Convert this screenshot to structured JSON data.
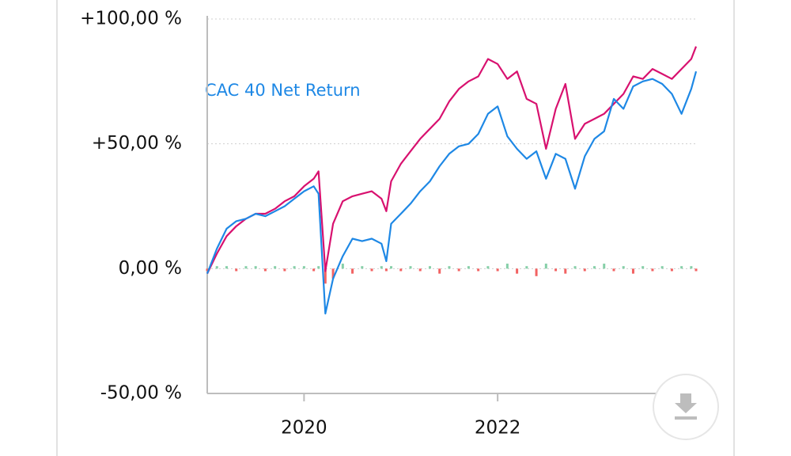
{
  "chart_data": {
    "type": "line",
    "annotation": "CAC 40 Net Return",
    "xlim": [
      2019.0,
      2024.05
    ],
    "xticks": [
      2020,
      2022
    ],
    "ylim": [
      -50,
      100
    ],
    "yticks": [
      {
        "value": -50,
        "label": "-50,00 %"
      },
      {
        "value": 0,
        "label": "0,00 %"
      },
      {
        "value": 50,
        "label": "+50,00 %"
      },
      {
        "value": 100,
        "label": "+100,00 %"
      }
    ],
    "grid": true,
    "x": [
      2019.0,
      2019.1,
      2019.2,
      2019.3,
      2019.4,
      2019.5,
      2019.6,
      2019.7,
      2019.8,
      2019.9,
      2020.0,
      2020.1,
      2020.15,
      2020.22,
      2020.3,
      2020.4,
      2020.5,
      2020.6,
      2020.7,
      2020.8,
      2020.85,
      2020.9,
      2021.0,
      2021.1,
      2021.2,
      2021.3,
      2021.4,
      2021.5,
      2021.6,
      2021.7,
      2021.8,
      2021.9,
      2022.0,
      2022.1,
      2022.2,
      2022.3,
      2022.4,
      2022.5,
      2022.6,
      2022.7,
      2022.8,
      2022.9,
      2023.0,
      2023.1,
      2023.2,
      2023.3,
      2023.4,
      2023.5,
      2023.6,
      2023.7,
      2023.8,
      2023.9,
      2024.0,
      2024.05
    ],
    "series": [
      {
        "color": "#d8116f",
        "values": [
          -2,
          6,
          13,
          17,
          20,
          22,
          22,
          24,
          27,
          29,
          33,
          36,
          39,
          -1,
          18,
          27,
          29,
          30,
          31,
          28,
          23,
          35,
          42,
          47,
          52,
          56,
          60,
          67,
          72,
          75,
          77,
          84,
          82,
          76,
          79,
          68,
          66,
          48,
          64,
          74,
          52,
          58,
          60,
          62,
          66,
          70,
          77,
          76,
          80,
          78,
          76,
          80,
          84,
          89
        ]
      },
      {
        "name": "CAC 40 Net Return",
        "color": "#1e88e5",
        "values": [
          -2,
          8,
          16,
          19,
          20,
          22,
          21,
          23,
          25,
          28,
          31,
          33,
          30,
          -18,
          -4,
          5,
          12,
          11,
          12,
          10,
          3,
          18,
          22,
          26,
          31,
          35,
          41,
          46,
          49,
          50,
          54,
          62,
          65,
          53,
          48,
          44,
          47,
          36,
          46,
          44,
          32,
          45,
          52,
          55,
          68,
          64,
          73,
          75,
          76,
          74,
          70,
          62,
          72,
          79
        ]
      }
    ],
    "bars": {
      "positive_color": "#86cfa8",
      "negative_color": "#f26262",
      "values": [
        -1,
        1,
        1,
        -1,
        1,
        1,
        -1,
        1,
        -1,
        1,
        1,
        -1,
        1,
        -6,
        -4,
        2,
        -2,
        1,
        -1,
        1,
        -1,
        1,
        -1,
        1,
        -1,
        1,
        -2,
        1,
        -1,
        1,
        -1,
        1,
        -1,
        2,
        -2,
        1,
        -3,
        2,
        -1,
        -2,
        1,
        -1,
        1,
        2,
        -1,
        1,
        -2,
        1,
        -1,
        1,
        -1,
        1,
        1,
        -1
      ]
    }
  }
}
